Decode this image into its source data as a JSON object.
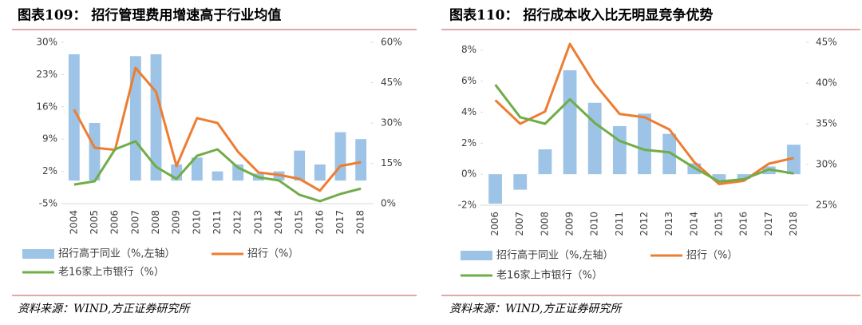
{
  "chart_data": [
    {
      "type": "combo",
      "title": "图表109：  招行管理费用增速高于行业均值",
      "source": "资料来源：WIND,方正证券研究所",
      "categories": [
        "2004",
        "2005",
        "2006",
        "2007",
        "2008",
        "2009",
        "2010",
        "2011",
        "2012",
        "2013",
        "2014",
        "2015",
        "2016",
        "2017",
        "2018"
      ],
      "ylim": [
        -5,
        30
      ],
      "yticks": [
        {
          "value": -5,
          "label": "-5%"
        },
        {
          "value": 2,
          "label": "2%"
        },
        {
          "value": 9,
          "label": "9%"
        },
        {
          "value": 16,
          "label": "16%"
        },
        {
          "value": 23,
          "label": "23%"
        },
        {
          "value": 30,
          "label": "30%"
        }
      ],
      "y2lim": [
        0,
        60
      ],
      "y2ticks": [
        {
          "value": 0,
          "label": "0%"
        },
        {
          "value": 15,
          "label": "15%"
        },
        {
          "value": 30,
          "label": "30%"
        },
        {
          "value": 45,
          "label": "45%"
        },
        {
          "value": 60,
          "label": "60%"
        }
      ],
      "series": [
        {
          "name": "招行高于同业（%,左轴）",
          "kind": "bar",
          "color": "#9dc3e6",
          "values": [
            27.4,
            12.5,
            0,
            27,
            27.4,
            3.5,
            5,
            2,
            3.5,
            1.5,
            2,
            6.5,
            3.5,
            10.5,
            9
          ]
        },
        {
          "name": "招行（%）",
          "kind": "line",
          "axis": "y2",
          "color": "#ed7d31",
          "values": [
            35,
            20.8,
            20,
            50.5,
            41.6,
            14,
            31.8,
            30,
            19.3,
            11.6,
            10.7,
            9.2,
            4.8,
            14,
            15.4
          ]
        },
        {
          "name": "老16家上市银行（%）",
          "kind": "line",
          "axis": "y2",
          "color": "#70ad47",
          "values": [
            7.1,
            8.3,
            20.2,
            23.2,
            13.7,
            9.2,
            17.8,
            20.2,
            13.4,
            9.8,
            8.6,
            3.3,
            0.9,
            3.6,
            5.6
          ]
        }
      ]
    },
    {
      "type": "combo",
      "title": "图表110：  招行成本收入比无明显竞争优势",
      "source": "资料来源：WIND,方正证券研究所",
      "categories": [
        "2006",
        "2007",
        "2008",
        "2009",
        "2010",
        "2011",
        "2012",
        "2013",
        "2014",
        "2015",
        "2016",
        "2017",
        "2018"
      ],
      "ylim": [
        -2,
        8.5
      ],
      "yticks": [
        {
          "value": -2,
          "label": "-2%"
        },
        {
          "value": 0,
          "label": "0%"
        },
        {
          "value": 2,
          "label": "2%"
        },
        {
          "value": 4,
          "label": "4%"
        },
        {
          "value": 6,
          "label": "6%"
        },
        {
          "value": 8,
          "label": "8%"
        }
      ],
      "y2lim": [
        25,
        45
      ],
      "y2ticks": [
        {
          "value": 25,
          "label": "25%"
        },
        {
          "value": 30,
          "label": "30%"
        },
        {
          "value": 35,
          "label": "35%"
        },
        {
          "value": 40,
          "label": "40%"
        },
        {
          "value": 45,
          "label": "45%"
        }
      ],
      "series": [
        {
          "name": "招行高于同业（%,左轴）",
          "kind": "bar",
          "color": "#9dc3e6",
          "values": [
            -1.9,
            -1.0,
            1.6,
            6.7,
            4.6,
            3.1,
            3.9,
            2.6,
            0.7,
            -0.4,
            -0.3,
            0.5,
            1.9
          ]
        },
        {
          "name": "招行（%）",
          "kind": "line",
          "axis": "y2",
          "color": "#ed7d31",
          "values": [
            37.9,
            35,
            36.5,
            44.8,
            39.9,
            36.2,
            35.8,
            34.3,
            30.3,
            27.6,
            28,
            30.1,
            30.8
          ]
        },
        {
          "name": "老16家上市银行（%）",
          "kind": "line",
          "axis": "y2",
          "color": "#70ad47",
          "values": [
            39.8,
            35.8,
            35,
            38,
            35.1,
            32.9,
            31.8,
            31.5,
            29.6,
            27.9,
            28.2,
            29.4,
            28.9
          ]
        }
      ]
    }
  ]
}
